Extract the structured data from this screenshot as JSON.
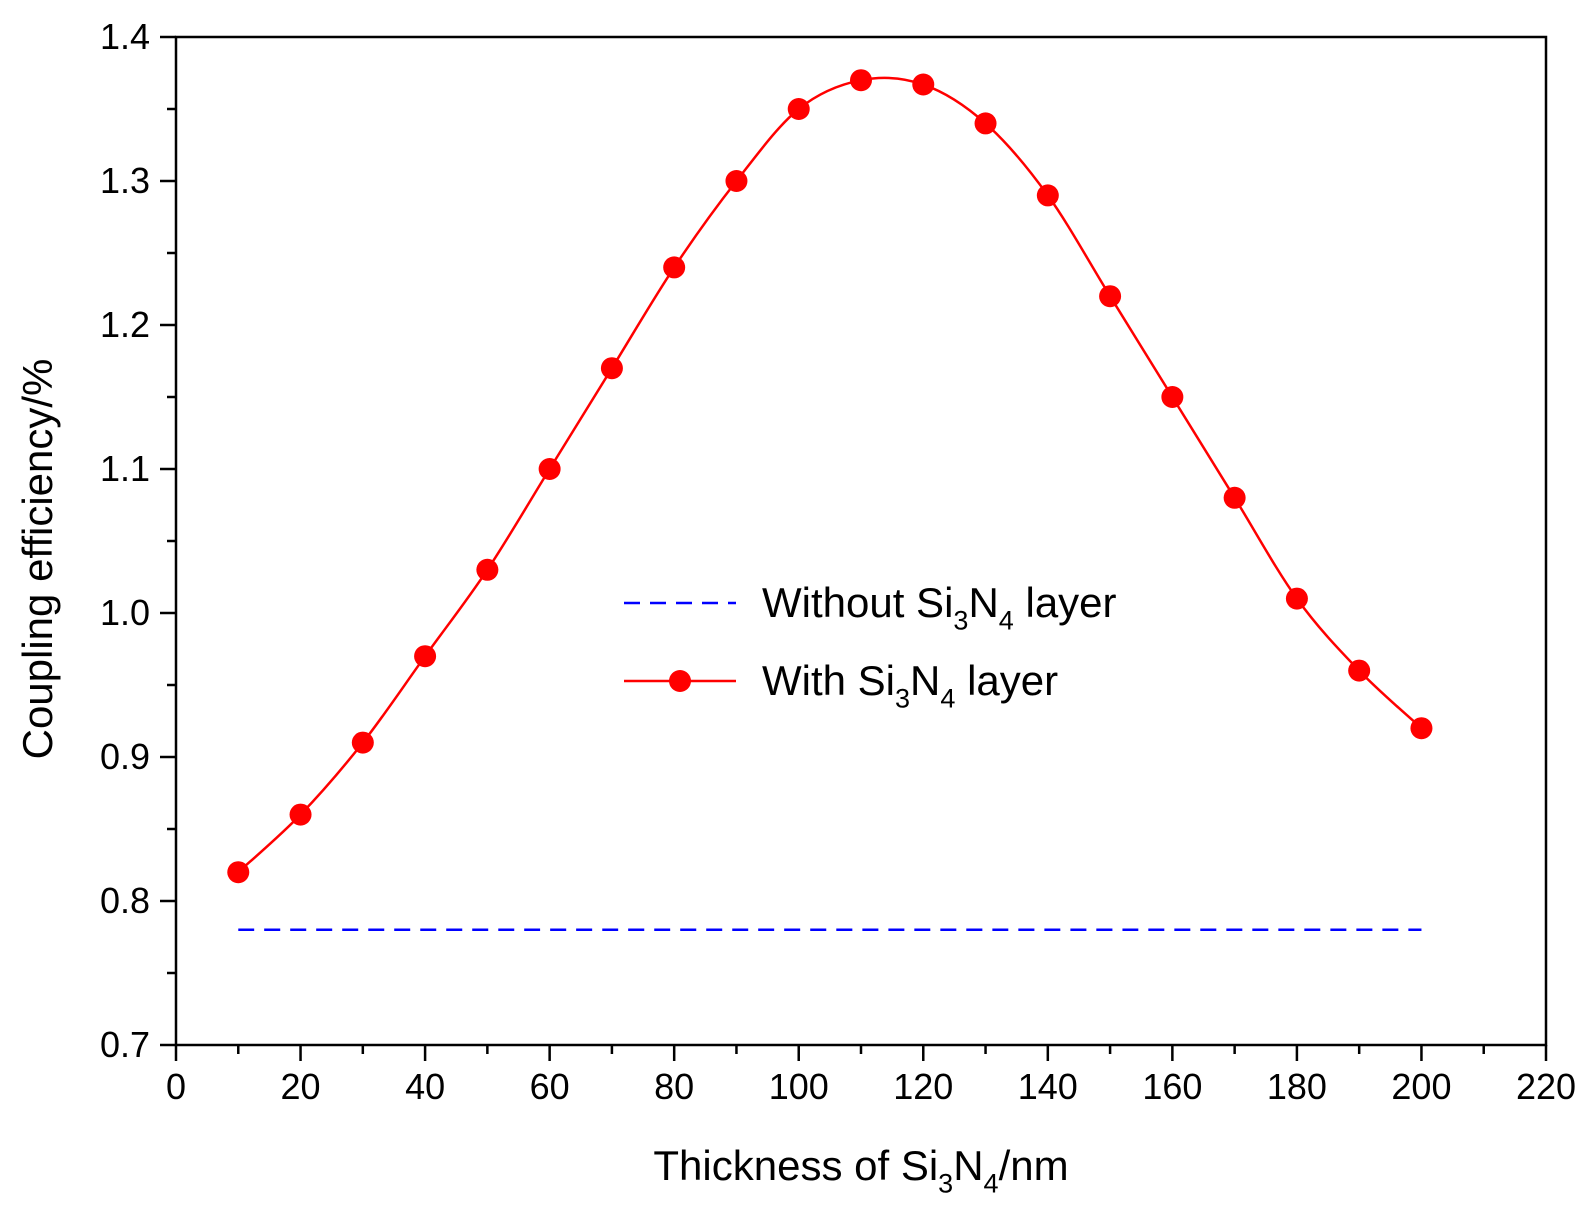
{
  "chart_data": {
    "type": "line",
    "title": "",
    "xlabel": {
      "parts": [
        {
          "text": "Thickness of Si"
        },
        {
          "text": "3",
          "sub": true
        },
        {
          "text": "N"
        },
        {
          "text": "4",
          "sub": true
        },
        {
          "text": "/nm"
        }
      ]
    },
    "ylabel": "Coupling efficiency/%",
    "xlim": [
      0,
      220
    ],
    "ylim": [
      0.7,
      1.4
    ],
    "xticks": [
      "0",
      "20",
      "40",
      "60",
      "80",
      "100",
      "120",
      "140",
      "160",
      "180",
      "200",
      "220"
    ],
    "yticks": [
      "0.7",
      "0.8",
      "0.9",
      "1.0",
      "1.1",
      "1.2",
      "1.3",
      "1.4"
    ],
    "grid": false,
    "legend_position": "center",
    "series": [
      {
        "name": "Without Si3N4 layer",
        "label_parts": [
          {
            "text": "Without Si"
          },
          {
            "text": "3",
            "sub": true
          },
          {
            "text": "N"
          },
          {
            "text": "4",
            "sub": true
          },
          {
            "text": " layer"
          }
        ],
        "style": "dashed",
        "marker": "none",
        "color": "#0000ff",
        "x": [
          10,
          200
        ],
        "y": [
          0.78,
          0.78
        ]
      },
      {
        "name": "With Si3N4 layer",
        "label_parts": [
          {
            "text": "With Si"
          },
          {
            "text": "3",
            "sub": true
          },
          {
            "text": "N"
          },
          {
            "text": "4",
            "sub": true
          },
          {
            "text": " layer"
          }
        ],
        "style": "solid",
        "marker": "circle",
        "color": "#ff0000",
        "x": [
          10,
          20,
          30,
          40,
          50,
          60,
          70,
          80,
          90,
          100,
          110,
          120,
          130,
          140,
          150,
          160,
          170,
          180,
          190,
          200
        ],
        "y": [
          0.82,
          0.86,
          0.91,
          0.97,
          1.03,
          1.1,
          1.17,
          1.24,
          1.3,
          1.35,
          1.37,
          1.367,
          1.34,
          1.29,
          1.22,
          1.15,
          1.08,
          1.01,
          0.96,
          0.92
        ]
      }
    ]
  }
}
